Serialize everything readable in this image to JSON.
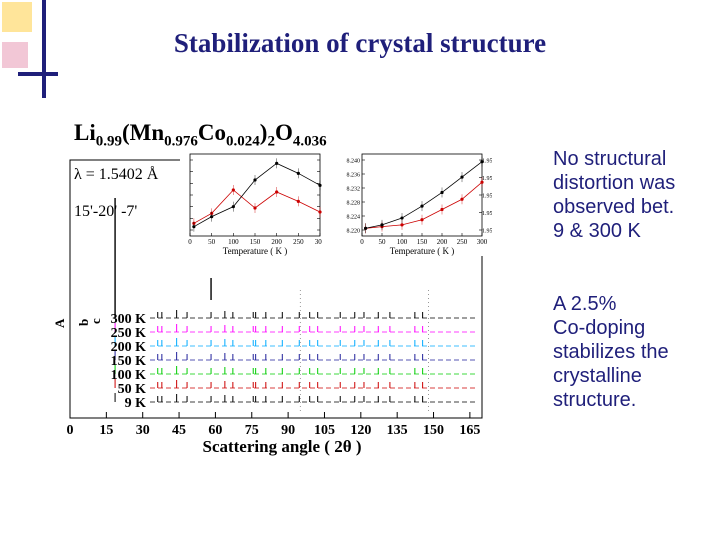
{
  "slide": {
    "title": "Stabilization of crystal structure",
    "formula": {
      "prefix": "Li",
      "sub1": "0.99",
      "mid1": "(Mn",
      "sub2": "0.976",
      "mid2": "Co",
      "sub3": "0.024",
      "mid3": ")",
      "sub4": "2",
      "mid4": "O",
      "sub5": "4.036"
    },
    "wavelength": "λ = 1.5402 Å",
    "slits": "15'-20' -7'",
    "notes": [
      [
        "No structural",
        "distortion was",
        "observed bet.",
        "9 & 300 K"
      ],
      [
        "A 2.5%",
        "Co-doping",
        "stabilizes the",
        "crystalline",
        "structure."
      ]
    ]
  },
  "chart_data": [
    {
      "type": "line",
      "title": "",
      "xlabel": "Scattering angle ( 2θ )",
      "ylabel": "",
      "xlim": [
        0,
        170
      ],
      "x_ticks": [
        "0",
        "15",
        "30",
        "45",
        "60",
        "75",
        "90",
        "105",
        "120",
        "135",
        "150",
        "165"
      ],
      "series": [
        {
          "name": "300 K",
          "color": "#000000"
        },
        {
          "name": "250 K",
          "color": "#ff00ff"
        },
        {
          "name": "200 K",
          "color": "#00aaff"
        },
        {
          "name": "150 K",
          "color": "#1f1f9a"
        },
        {
          "name": "100 K",
          "color": "#00cc00"
        },
        {
          "name": "50 K",
          "color": "#cc0000"
        },
        {
          "name": "9 K",
          "color": "#000000"
        }
      ],
      "peaks_2theta": [
        18.6,
        36.2,
        37.9,
        44.0,
        48.3,
        58.2,
        63.9,
        67.2,
        75.6,
        76.6,
        80.8,
        87.6,
        94.6,
        98.9,
        102.2,
        111.5,
        117.5,
        121.3,
        127.2,
        132.0,
        142.3,
        145.5
      ]
    },
    {
      "type": "scatter",
      "xlabel": "Temperature ( K )",
      "xlim": [
        0,
        300
      ],
      "x_ticks": [
        "0",
        "50",
        "100",
        "150",
        "200",
        "250",
        "300"
      ],
      "y_ticks": [
        "8.236",
        "8.234",
        "8.232",
        "8.230",
        "8.228",
        "8.226",
        "8.224"
      ],
      "y2_ticks": [
        "96.34",
        "96.32",
        "96.30",
        "96.28",
        "96.26",
        "96.24",
        "96.22"
      ],
      "x": [
        9,
        50,
        100,
        150,
        200,
        250,
        300
      ],
      "series": [
        {
          "y": [
            8.2245,
            8.226,
            8.2295,
            8.2268,
            8.2292,
            8.2278,
            8.2262
          ]
        },
        {
          "y": [
            8.224,
            8.2255,
            8.227,
            8.231,
            8.2335,
            8.232,
            8.2302
          ]
        }
      ]
    },
    {
      "type": "scatter",
      "xlabel": "Temperature ( K )",
      "xlim": [
        0,
        300
      ],
      "x_ticks": [
        "0",
        "50",
        "100",
        "150",
        "200",
        "250",
        "300"
      ],
      "y_ticks": [
        "8.240",
        "8.236",
        "8.232",
        "8.228",
        "8.224",
        "8.220"
      ],
      "y2_ticks": [
        "1.955",
        "1.954",
        "1.953",
        "1.952",
        "1.951"
      ],
      "x": [
        9,
        50,
        100,
        150,
        200,
        250,
        300
      ],
      "series": [
        {
          "y": [
            8.22,
            8.2205,
            8.221,
            8.2225,
            8.2255,
            8.2285,
            8.2335
          ]
        },
        {
          "y": [
            8.22,
            8.221,
            8.223,
            8.2265,
            8.2305,
            8.235,
            8.2395
          ]
        }
      ]
    }
  ]
}
